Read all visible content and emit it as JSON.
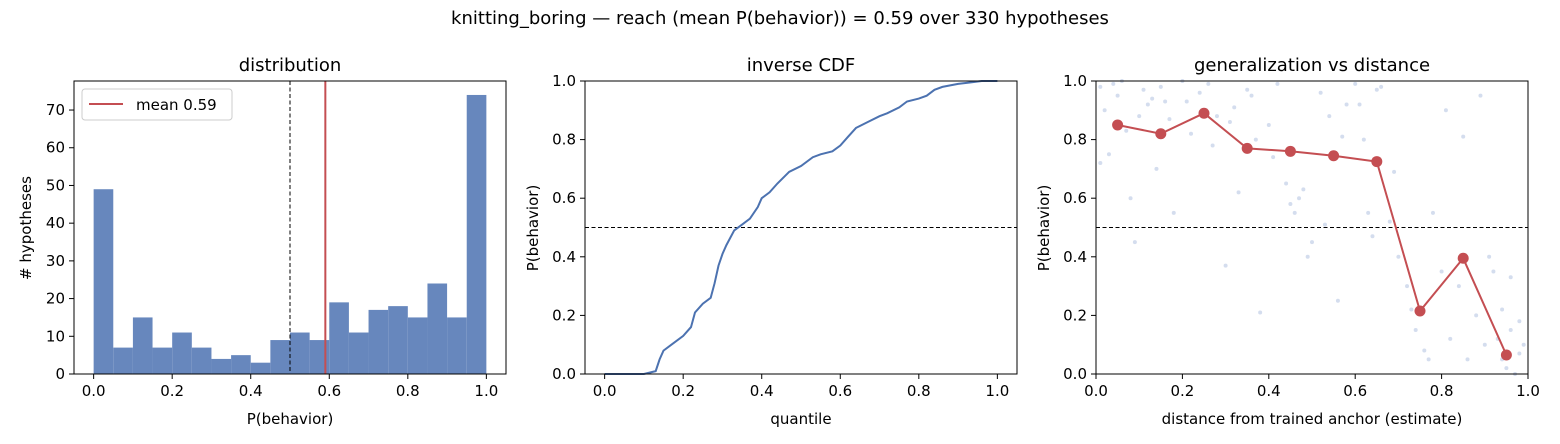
{
  "suptitle": "knitting_boring  —  reach (mean P(behavior)) = 0.59  over 330 hypotheses",
  "colors": {
    "blue": "#6787bd",
    "line_blue": "#4c72b0",
    "red": "#c44e52",
    "scatter": "#b8c7e3"
  },
  "chart_data": [
    {
      "type": "bar",
      "title": "distribution",
      "xlabel": "P(behavior)",
      "ylabel": "# hypotheses",
      "xlim": [
        -0.05,
        1.05
      ],
      "ylim": [
        0,
        77.7
      ],
      "xticks": [
        "0.0",
        "0.2",
        "0.4",
        "0.6",
        "0.8",
        "1.0"
      ],
      "yticks": [
        "0",
        "10",
        "20",
        "30",
        "40",
        "50",
        "60",
        "70"
      ],
      "bin_edges": [
        0,
        0.05,
        0.1,
        0.15,
        0.2,
        0.25,
        0.3,
        0.35,
        0.4,
        0.45,
        0.5,
        0.55,
        0.6,
        0.65,
        0.7,
        0.75,
        0.8,
        0.85,
        0.9,
        0.95,
        1.0
      ],
      "values": [
        49,
        7,
        15,
        7,
        11,
        7,
        4,
        5,
        3,
        9,
        11,
        9,
        19,
        11,
        17,
        18,
        15,
        24,
        15,
        74
      ],
      "threshold": 0.5,
      "mean": 0.59,
      "legend": {
        "label": "mean 0.59",
        "position": "upper-left"
      }
    },
    {
      "type": "line",
      "title": "inverse CDF",
      "xlabel": "quantile",
      "ylabel": "P(behavior)",
      "xlim": [
        -0.05,
        1.05
      ],
      "ylim": [
        0,
        1
      ],
      "xticks": [
        "0.0",
        "0.2",
        "0.4",
        "0.6",
        "0.8",
        "1.0"
      ],
      "yticks": [
        "0.0",
        "0.2",
        "0.4",
        "0.6",
        "0.8",
        "1.0"
      ],
      "threshold": 0.5,
      "x": [
        0.0,
        0.1,
        0.13,
        0.14,
        0.15,
        0.17,
        0.2,
        0.22,
        0.23,
        0.25,
        0.27,
        0.28,
        0.29,
        0.3,
        0.31,
        0.33,
        0.35,
        0.37,
        0.39,
        0.4,
        0.42,
        0.44,
        0.47,
        0.5,
        0.53,
        0.55,
        0.58,
        0.6,
        0.62,
        0.64,
        0.67,
        0.7,
        0.72,
        0.75,
        0.77,
        0.8,
        0.82,
        0.84,
        0.86,
        0.88,
        0.9,
        0.93,
        0.96,
        1.0
      ],
      "y": [
        0.0,
        0.0,
        0.01,
        0.05,
        0.08,
        0.1,
        0.13,
        0.16,
        0.21,
        0.24,
        0.26,
        0.31,
        0.37,
        0.41,
        0.44,
        0.49,
        0.51,
        0.53,
        0.57,
        0.6,
        0.62,
        0.65,
        0.69,
        0.71,
        0.74,
        0.75,
        0.76,
        0.78,
        0.81,
        0.84,
        0.86,
        0.88,
        0.89,
        0.91,
        0.93,
        0.94,
        0.95,
        0.97,
        0.98,
        0.985,
        0.99,
        0.995,
        1.0,
        1.0
      ]
    },
    {
      "type": "scatter",
      "title": "generalization vs distance",
      "xlabel": "distance from trained anchor (estimate)",
      "ylabel": "P(behavior)",
      "xlim": [
        0,
        1
      ],
      "ylim": [
        0,
        1
      ],
      "xticks": [
        "0.0",
        "0.2",
        "0.4",
        "0.6",
        "0.8",
        "1.0"
      ],
      "yticks": [
        "0.0",
        "0.2",
        "0.4",
        "0.6",
        "0.8",
        "1.0"
      ],
      "threshold": 0.5,
      "binned_x": [
        0.05,
        0.15,
        0.25,
        0.35,
        0.45,
        0.55,
        0.65,
        0.75,
        0.85,
        0.95
      ],
      "binned_y": [
        0.85,
        0.82,
        0.89,
        0.77,
        0.76,
        0.745,
        0.725,
        0.215,
        0.395,
        0.065
      ],
      "points_x": [
        0.01,
        0.02,
        0.03,
        0.05,
        0.06,
        0.08,
        0.09,
        0.1,
        0.12,
        0.14,
        0.15,
        0.16,
        0.18,
        0.2,
        0.22,
        0.24,
        0.26,
        0.28,
        0.3,
        0.32,
        0.33,
        0.35,
        0.37,
        0.38,
        0.4,
        0.42,
        0.44,
        0.45,
        0.46,
        0.47,
        0.49,
        0.5,
        0.52,
        0.54,
        0.56,
        0.58,
        0.6,
        0.62,
        0.63,
        0.65,
        0.66,
        0.68,
        0.7,
        0.72,
        0.74,
        0.76,
        0.78,
        0.8,
        0.82,
        0.84,
        0.86,
        0.88,
        0.9,
        0.92,
        0.93,
        0.94,
        0.95,
        0.96,
        0.97,
        0.98,
        0.99,
        0.01,
        0.04,
        0.07,
        0.11,
        0.13,
        0.17,
        0.21,
        0.27,
        0.31,
        0.36,
        0.41,
        0.48,
        0.53,
        0.57,
        0.61,
        0.64,
        0.69,
        0.73,
        0.77,
        0.81,
        0.85,
        0.89,
        0.91,
        0.94,
        0.96,
        0.98
      ],
      "points_y": [
        0.98,
        0.9,
        0.75,
        0.95,
        1.0,
        0.6,
        0.45,
        0.88,
        0.92,
        0.7,
        0.98,
        0.93,
        0.55,
        1.0,
        0.82,
        0.96,
        0.99,
        0.88,
        0.37,
        0.91,
        0.62,
        0.97,
        0.8,
        0.21,
        0.85,
        0.99,
        0.65,
        0.58,
        0.55,
        0.6,
        0.4,
        0.45,
        0.96,
        0.88,
        0.25,
        0.92,
        0.99,
        0.8,
        0.55,
        0.97,
        0.98,
        0.52,
        0.4,
        0.3,
        0.15,
        0.08,
        0.55,
        0.35,
        0.12,
        0.3,
        0.05,
        0.2,
        0.1,
        0.35,
        0.12,
        0.05,
        0.02,
        0.15,
        0.0,
        0.18,
        0.1,
        0.72,
        0.99,
        0.83,
        0.97,
        0.94,
        0.87,
        0.93,
        0.78,
        0.86,
        0.95,
        0.74,
        0.63,
        0.51,
        0.81,
        0.92,
        0.47,
        0.69,
        0.22,
        0.05,
        0.9,
        0.81,
        0.95,
        0.4,
        0.22,
        0.33,
        0.07
      ]
    }
  ]
}
